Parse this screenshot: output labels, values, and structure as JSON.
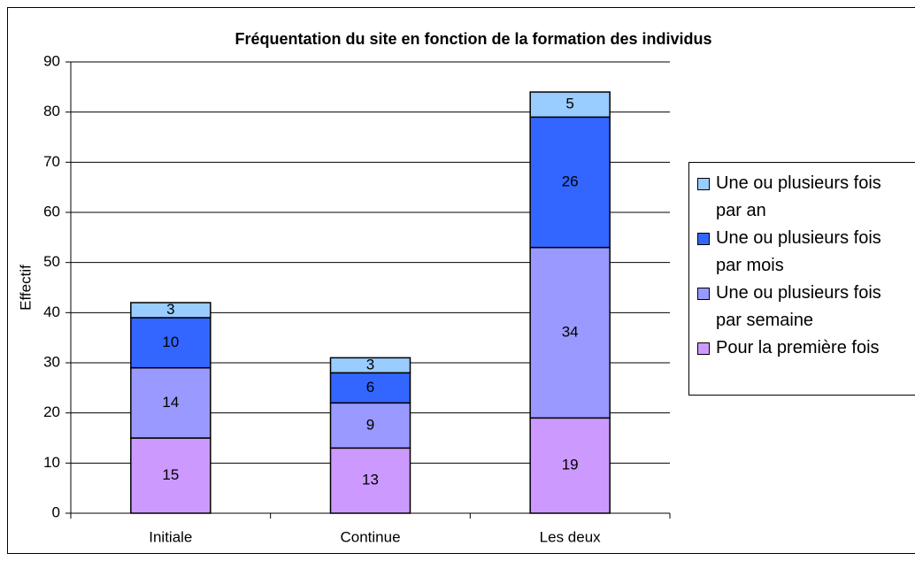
{
  "chart_data": {
    "type": "stacked_bar",
    "title": "Fréquentation du site en fonction de la formation des individus",
    "y_label": "Effectif",
    "categories": [
      "Initiale",
      "Continue",
      "Les deux"
    ],
    "series": [
      {
        "name": "Pour la première fois",
        "color": "#cc99ff",
        "values": [
          15,
          13,
          19
        ]
      },
      {
        "name": "Une ou plusieurs fois par semaine",
        "color": "#9999ff",
        "values": [
          14,
          9,
          34
        ]
      },
      {
        "name": "Une ou plusieurs fois par mois",
        "color": "#3366ff",
        "values": [
          10,
          6,
          26
        ]
      },
      {
        "name": "Une ou plusieurs fois par an",
        "color": "#99ccff",
        "values": [
          3,
          3,
          5
        ]
      }
    ],
    "ylim": [
      0,
      90
    ],
    "yticks": [
      0,
      10,
      20,
      30,
      40,
      50,
      60,
      70,
      80,
      90
    ],
    "grid": true,
    "legend": "right"
  }
}
